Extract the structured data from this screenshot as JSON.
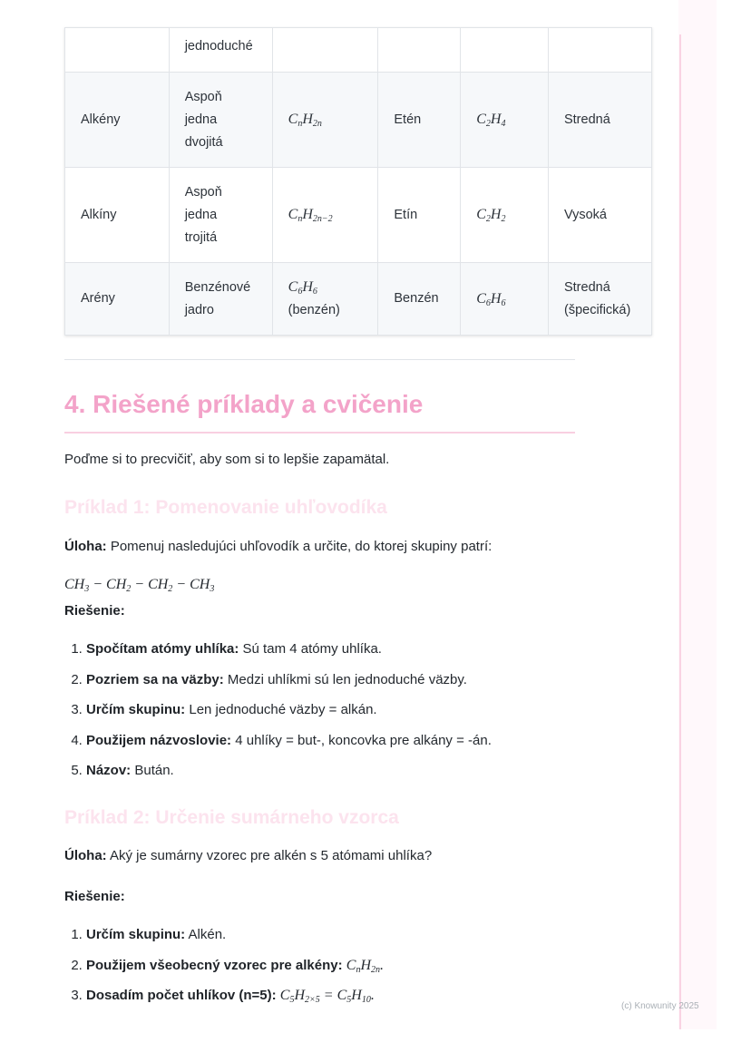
{
  "table": {
    "rows": [
      {
        "group": "",
        "bond": "jednoduché",
        "formula": [],
        "example": "",
        "example_formula": [],
        "reactivity": ""
      },
      {
        "group": "Alkény",
        "bond": "Aspoň jedna dvojitá",
        "formula": [
          [
            "C",
            ""
          ],
          [
            "",
            "n"
          ],
          [
            "H",
            ""
          ],
          [
            "",
            "2n"
          ]
        ],
        "example": "Etén",
        "example_formula": [
          [
            "C",
            ""
          ],
          [
            "",
            "2"
          ],
          [
            "H",
            ""
          ],
          [
            "",
            "4"
          ]
        ],
        "reactivity": "Stredná"
      },
      {
        "group": "Alkíny",
        "bond": "Aspoň jedna trojitá",
        "formula": [
          [
            "C",
            ""
          ],
          [
            "",
            "n"
          ],
          [
            "H",
            ""
          ],
          [
            "",
            "2n−2"
          ]
        ],
        "example": "Etín",
        "example_formula": [
          [
            "C",
            ""
          ],
          [
            "",
            "2"
          ],
          [
            "H",
            ""
          ],
          [
            "",
            "2"
          ]
        ],
        "reactivity": "Vysoká"
      },
      {
        "group": "Arény",
        "bond": "Benzénové jadro",
        "formula": [
          [
            "C",
            ""
          ],
          [
            "",
            "6"
          ],
          [
            "H",
            ""
          ],
          [
            "",
            "6"
          ]
        ],
        "formula_note": "(benzén)",
        "example": "Benzén",
        "example_formula": [
          [
            "C",
            ""
          ],
          [
            "",
            "6"
          ],
          [
            "H",
            ""
          ],
          [
            "",
            "6"
          ]
        ],
        "reactivity": "Stredná (špecifická)"
      }
    ]
  },
  "section": {
    "title": "4. Riešené príklady a cvičenie",
    "intro": "Poďme si to precvičiť, aby som si to lepšie zapamätal."
  },
  "example1": {
    "title": "Príklad 1: Pomenovanie uhľovodíka",
    "task_label": "Úloha:",
    "task": " Pomenuj nasledujúci uhľovodík a určite, do ktorej skupiny patrí:",
    "formula": [
      [
        "CH",
        ""
      ],
      [
        "",
        "3"
      ],
      [
        " − CH",
        ""
      ],
      [
        "",
        "2"
      ],
      [
        " − CH",
        ""
      ],
      [
        "",
        "2"
      ],
      [
        " − CH",
        ""
      ],
      [
        "",
        "3"
      ]
    ],
    "solution_label": "Riešenie:",
    "steps": [
      {
        "label": "Spočítam atómy uhlíka:",
        "text": " Sú tam 4 atómy uhlíka."
      },
      {
        "label": "Pozriem sa na väzby:",
        "text": " Medzi uhlíkmi sú len jednoduché väzby."
      },
      {
        "label": "Určím skupinu:",
        "text": " Len jednoduché väzby = alkán."
      },
      {
        "label": "Použijem názvoslovie:",
        "text": " 4 uhlíky = but-, koncovka pre alkány = -án."
      },
      {
        "label": "Názov:",
        "text": " Bután."
      }
    ]
  },
  "example2": {
    "title": "Príklad 2: Určenie sumárneho vzorca",
    "task_label": "Úloha:",
    "task": " Aký je sumárny vzorec pre alkén s 5 atómami uhlíka?",
    "solution_label": "Riešenie:",
    "steps": [
      {
        "label": "Určím skupinu:",
        "text": " Alkén."
      },
      {
        "label": "Použijem všeobecný vzorec pre alkény:",
        "formula": [
          [
            "C",
            ""
          ],
          [
            "",
            "n"
          ],
          [
            "H",
            ""
          ],
          [
            "",
            "2n"
          ],
          [
            ".",
            ""
          ]
        ]
      },
      {
        "label": "Dosadím počet uhlíkov (n=5):",
        "formula": [
          [
            "C",
            ""
          ],
          [
            "",
            "5"
          ],
          [
            "H",
            ""
          ],
          [
            "",
            "2×5"
          ],
          [
            " = C",
            ""
          ],
          [
            "",
            "5"
          ],
          [
            "H",
            ""
          ],
          [
            "",
            "10"
          ],
          [
            ".",
            ""
          ]
        ]
      }
    ]
  },
  "footer": {
    "copyright": "(c) Knowunity 2025"
  },
  "colors": {
    "heading": "#f3a3c9",
    "subheading": "#fce3ee",
    "accent_line": "#f9d3e3"
  }
}
